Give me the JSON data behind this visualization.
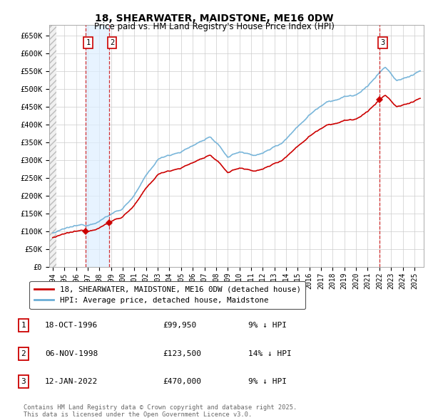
{
  "title": "18, SHEARWATER, MAIDSTONE, ME16 0DW",
  "subtitle": "Price paid vs. HM Land Registry's House Price Index (HPI)",
  "ylim": [
    0,
    680000
  ],
  "yticks": [
    0,
    50000,
    100000,
    150000,
    200000,
    250000,
    300000,
    350000,
    400000,
    450000,
    500000,
    550000,
    600000,
    650000
  ],
  "ytick_labels": [
    "£0",
    "£50K",
    "£100K",
    "£150K",
    "£200K",
    "£250K",
    "£300K",
    "£350K",
    "£400K",
    "£450K",
    "£500K",
    "£550K",
    "£600K",
    "£650K"
  ],
  "hpi_color": "#6baed6",
  "price_color": "#cc0000",
  "vline_color": "#cc0000",
  "shade_color": "#ddeeff",
  "legend_line1": "18, SHEARWATER, MAIDSTONE, ME16 0DW (detached house)",
  "legend_line2": "HPI: Average price, detached house, Maidstone",
  "transactions": [
    {
      "id": 1,
      "date": "18-OCT-1996",
      "year": 1996.79,
      "price": 99950,
      "pct": "9%",
      "direction": "↓"
    },
    {
      "id": 2,
      "date": "06-NOV-1998",
      "year": 1998.84,
      "price": 123500,
      "pct": "14%",
      "direction": "↓"
    },
    {
      "id": 3,
      "date": "12-JAN-2022",
      "year": 2022.03,
      "price": 470000,
      "pct": "9%",
      "direction": "↓"
    }
  ],
  "footer": "Contains HM Land Registry data © Crown copyright and database right 2025.\nThis data is licensed under the Open Government Licence v3.0.",
  "xlim_left": 1993.7,
  "xlim_right": 2025.8
}
